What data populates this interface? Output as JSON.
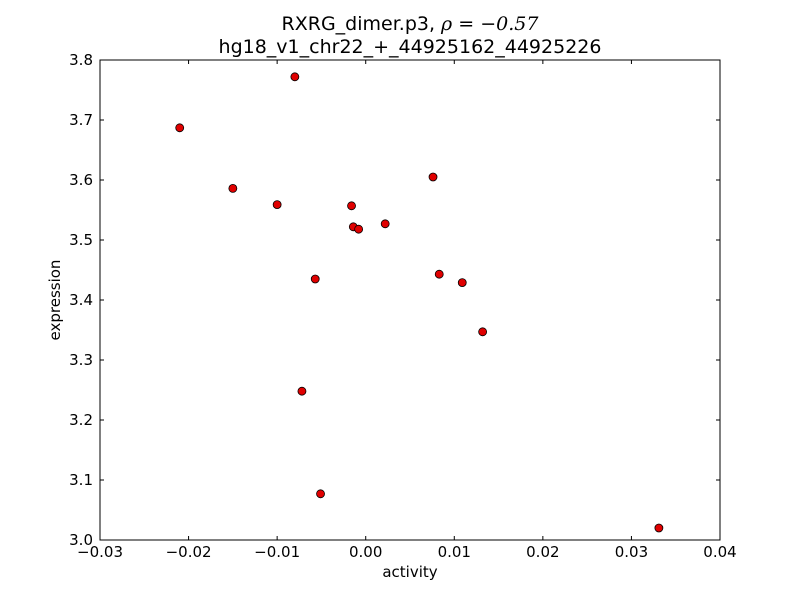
{
  "chart_data": {
    "type": "scatter",
    "title_line1": "RXRG_dimer.p3, ",
    "title_rho": "ρ = −0.57",
    "title_line2": "hg18_v1_chr22_+_44925162_44925226",
    "xlabel": "activity",
    "ylabel": "expression",
    "xlim": [
      -0.03,
      0.04
    ],
    "ylim": [
      3.0,
      3.8
    ],
    "xticks": [
      -0.03,
      -0.02,
      -0.01,
      0.0,
      0.01,
      0.02,
      0.03,
      0.04
    ],
    "xtick_labels": [
      "−0.03",
      "−0.02",
      "−0.01",
      "0.00",
      "0.01",
      "0.02",
      "0.03",
      "0.04"
    ],
    "yticks": [
      3.0,
      3.1,
      3.2,
      3.3,
      3.4,
      3.5,
      3.6,
      3.7,
      3.8
    ],
    "ytick_labels": [
      "3.0",
      "3.1",
      "3.2",
      "3.3",
      "3.4",
      "3.5",
      "3.6",
      "3.7",
      "3.8"
    ],
    "grid": false,
    "marker_color": "#e00000",
    "marker_edge_color": "#000000",
    "points": [
      {
        "x": -0.021,
        "y": 3.687
      },
      {
        "x": -0.008,
        "y": 3.772
      },
      {
        "x": -0.015,
        "y": 3.586
      },
      {
        "x": -0.01,
        "y": 3.559
      },
      {
        "x": -0.0016,
        "y": 3.557
      },
      {
        "x": -0.0014,
        "y": 3.522
      },
      {
        "x": -0.0008,
        "y": 3.518
      },
      {
        "x": 0.0022,
        "y": 3.527
      },
      {
        "x": 0.0076,
        "y": 3.605
      },
      {
        "x": -0.0057,
        "y": 3.435
      },
      {
        "x": 0.0083,
        "y": 3.443
      },
      {
        "x": 0.0109,
        "y": 3.429
      },
      {
        "x": 0.0132,
        "y": 3.347
      },
      {
        "x": -0.0072,
        "y": 3.248
      },
      {
        "x": -0.0051,
        "y": 3.077
      },
      {
        "x": 0.0331,
        "y": 3.02
      }
    ]
  }
}
